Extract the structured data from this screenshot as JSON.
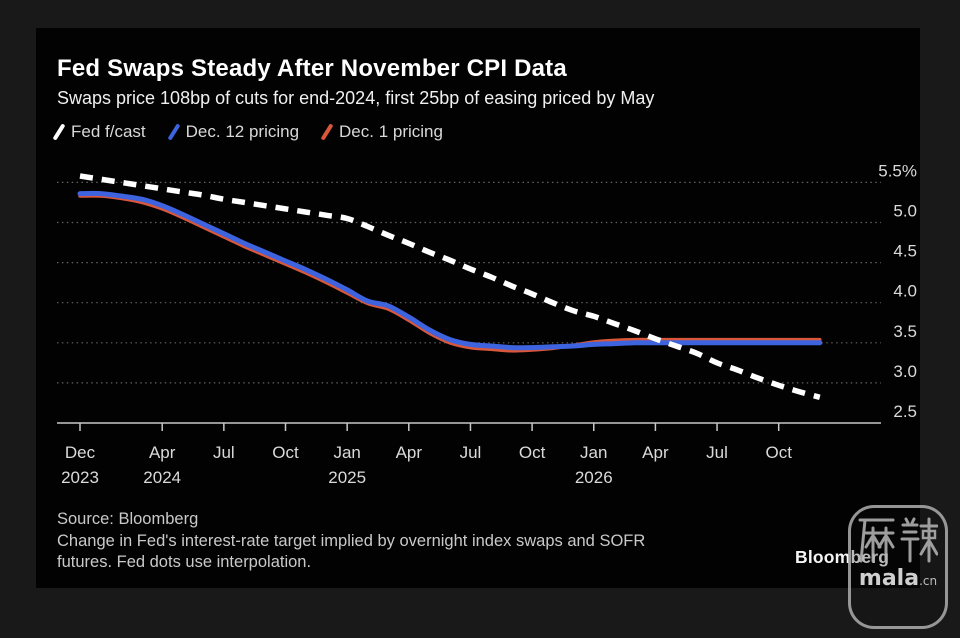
{
  "colors": {
    "page_background": "#191919",
    "card_background": "#020202",
    "fed_forecast": "#ffffff",
    "dec12_pricing": "#3d63df",
    "dec1_pricing": "#d9573b",
    "grid": "#6e6e6e",
    "axis": "#c8c8c8",
    "tick_label": "#dadada"
  },
  "header": {
    "title": "Fed Swaps Steady After November CPI Data",
    "subtitle": "Swaps price 108bp of cuts for end-2024, first 25bp of easing priced by May"
  },
  "legend": {
    "items": [
      {
        "label": "Fed f/cast",
        "color": "#ffffff"
      },
      {
        "label": "Dec. 12 pricing",
        "color": "#3d63df"
      },
      {
        "label": "Dec. 1 pricing",
        "color": "#d9573b"
      }
    ]
  },
  "chart_data": {
    "type": "line",
    "x_unit": "months from Dec 2023",
    "x_range_labels": [
      "Dec 2023",
      "Dec 2026"
    ],
    "ylim": [
      2.5,
      5.5
    ],
    "ylabel": "%",
    "grid": "dotted-horizontal",
    "legend_position": "top-left",
    "x_ticks": [
      {
        "m": 0,
        "month": "Dec",
        "year": "2023"
      },
      {
        "m": 4,
        "month": "Apr",
        "year": "2024"
      },
      {
        "m": 7,
        "month": "Jul"
      },
      {
        "m": 10,
        "month": "Oct"
      },
      {
        "m": 13,
        "month": "Jan",
        "year": "2025"
      },
      {
        "m": 16,
        "month": "Apr"
      },
      {
        "m": 19,
        "month": "Jul"
      },
      {
        "m": 22,
        "month": "Oct"
      },
      {
        "m": 25,
        "month": "Jan",
        "year": "2026"
      },
      {
        "m": 28,
        "month": "Apr"
      },
      {
        "m": 31,
        "month": "Jul"
      },
      {
        "m": 34,
        "month": "Oct"
      }
    ],
    "y_ticks": [
      {
        "label": "5.5%",
        "value": 5.5
      },
      {
        "label": "5.0",
        "value": 5.0
      },
      {
        "label": "4.5",
        "value": 4.5
      },
      {
        "label": "4.0",
        "value": 4.0
      },
      {
        "label": "3.5",
        "value": 3.5
      },
      {
        "label": "3.0",
        "value": 3.0
      },
      {
        "label": "2.5",
        "value": 2.5
      }
    ],
    "series": [
      {
        "name": "Dec. 1 pricing",
        "color": "#d9573b",
        "width": 3.5,
        "dashed": false,
        "values": [
          5.33,
          5.33,
          5.3,
          5.25,
          5.17,
          5.06,
          4.94,
          4.82,
          4.7,
          4.59,
          4.48,
          4.37,
          4.25,
          4.12,
          3.99,
          3.92,
          3.78,
          3.62,
          3.5,
          3.44,
          3.42,
          3.4,
          3.41,
          3.43,
          3.47,
          3.51,
          3.53,
          3.54,
          3.54,
          3.54,
          3.54,
          3.54,
          3.54,
          3.54,
          3.54,
          3.54,
          3.54
        ]
      },
      {
        "name": "Dec. 12 pricing",
        "color": "#3d63df",
        "width": 5,
        "dashed": false,
        "values": [
          5.36,
          5.36,
          5.33,
          5.29,
          5.21,
          5.1,
          4.98,
          4.86,
          4.74,
          4.63,
          4.52,
          4.41,
          4.29,
          4.16,
          4.02,
          3.96,
          3.82,
          3.66,
          3.54,
          3.48,
          3.46,
          3.44,
          3.44,
          3.45,
          3.46,
          3.48,
          3.49,
          3.5,
          3.5,
          3.5,
          3.5,
          3.5,
          3.5,
          3.5,
          3.5,
          3.5,
          3.5
        ]
      },
      {
        "name": "Fed f/cast",
        "color": "#ffffff",
        "width": 5.5,
        "dashed": true,
        "values": [
          5.58,
          5.54,
          5.5,
          5.46,
          5.42,
          5.38,
          5.34,
          5.29,
          5.25,
          5.21,
          5.17,
          5.13,
          5.09,
          5.05,
          4.95,
          4.84,
          4.74,
          4.63,
          4.53,
          4.42,
          4.32,
          4.21,
          4.11,
          4.0,
          3.9,
          3.83,
          3.74,
          3.65,
          3.55,
          3.46,
          3.37,
          3.25,
          3.16,
          3.06,
          2.97,
          2.89,
          2.82
        ]
      }
    ]
  },
  "footer": {
    "source": "Source: Bloomberg",
    "note_line1": "Change in Fed's interest-rate target implied by overnight index swaps and SOFR",
    "note_line2": "futures. Fed dots use interpolation."
  },
  "branding": {
    "logo": "Bloomberg"
  },
  "watermark": {
    "chars": "麻辣",
    "text": "mala",
    "suffix": ".cn"
  }
}
